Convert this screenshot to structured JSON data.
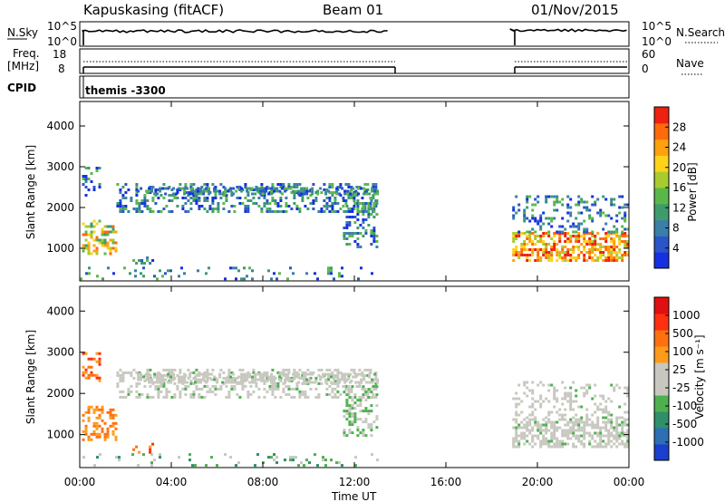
{
  "header": {
    "station": "Kapuskasing (fitACF)",
    "beam": "Beam 01",
    "date": "01/Nov/2015"
  },
  "top_panels": {
    "nsky_label": "N.Sky",
    "nsky_ticks": [
      "10^5",
      "10^0"
    ],
    "nsearch_label": "N.Search",
    "nsearch_ticks": [
      "10^5",
      "10^0"
    ],
    "freq_label": "Freq.",
    "freq_unit": "[MHz]",
    "freq_ticks": [
      "18",
      "8"
    ],
    "nave_label": "Nave",
    "nave_ticks": [
      "60",
      "0"
    ],
    "cpid_label": "CPID",
    "cpid_text": "themis -3300"
  },
  "chart_data": [
    {
      "type": "heatmap",
      "name": "power",
      "ylabel": "Slant Range [km]",
      "ylim": [
        200,
        4600
      ],
      "y_ticks": [
        "4000",
        "3000",
        "2000",
        "1000"
      ],
      "x_ticks": [
        "00:00",
        "04:00",
        "08:00",
        "12:00",
        "16:00",
        "20:00",
        "00:00"
      ],
      "xlim_hours": [
        0,
        24
      ],
      "data_gaps_hours": [
        [
          13.6,
          18.8
        ]
      ],
      "colorbar": {
        "label": "Power [dB]",
        "ticks": [
          "28",
          "24",
          "20",
          "16",
          "12",
          "8",
          "4"
        ],
        "colors": [
          "#1530e0",
          "#2a55c8",
          "#3a7fa8",
          "#3f9b6e",
          "#5ab84a",
          "#a8cc2e",
          "#ffd21a",
          "#ffa010",
          "#ff6a0a",
          "#ee2010"
        ]
      }
    },
    {
      "type": "heatmap",
      "name": "velocity",
      "ylabel": "Slant Range [km]",
      "ylim": [
        200,
        4600
      ],
      "y_ticks": [
        "4000",
        "3000",
        "2000",
        "1000"
      ],
      "x_ticks": [
        "00:00",
        "04:00",
        "08:00",
        "12:00",
        "16:00",
        "20:00",
        "00:00"
      ],
      "xlabel": "Time UT",
      "xlim_hours": [
        0,
        24
      ],
      "data_gaps_hours": [
        [
          13.6,
          18.8
        ]
      ],
      "colorbar": {
        "label": "Velocity [m s⁻¹]",
        "ticks": [
          "1000",
          "500",
          "100",
          "25",
          "-25",
          "-100",
          "-500",
          "-1000"
        ],
        "colors": [
          "#1a3fcf",
          "#2c6fb3",
          "#2f8f6b",
          "#4fb04f",
          "#c8c8c0",
          "#c8c8c0",
          "#ff9b1a",
          "#ff7010",
          "#ff3010",
          "#e01010"
        ]
      }
    }
  ]
}
